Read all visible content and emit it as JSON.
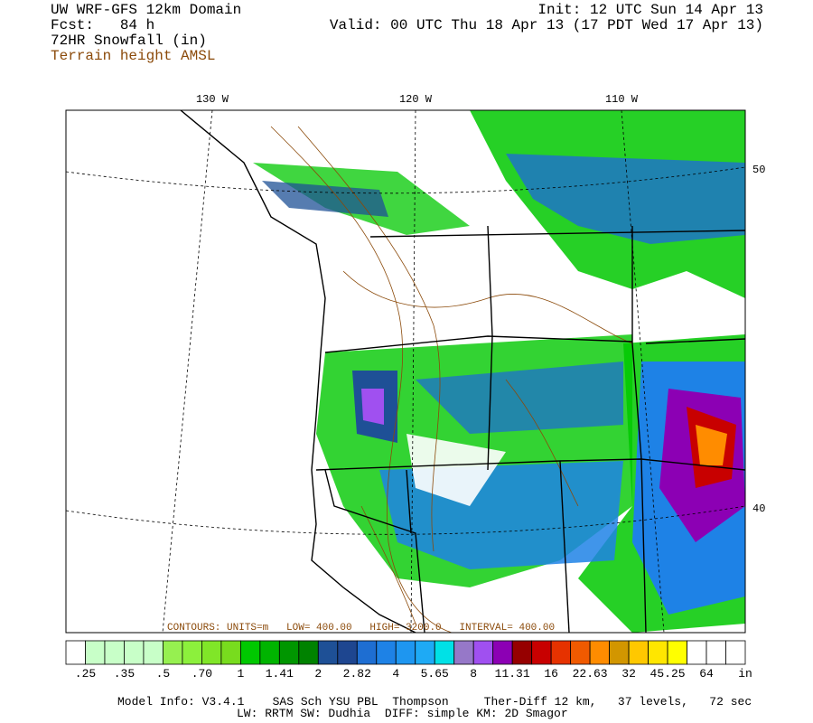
{
  "header": {
    "title": "UW WRF-GFS 12km Domain",
    "forecast": "Fcst:   84 h",
    "field": "72HR Snowfall (in)",
    "contour_field": "Terrain height AMSL",
    "init": "Init: 12 UTC Sun 14 Apr 13",
    "valid": "Valid: 00 UTC Thu 18 Apr 13 (17 PDT Wed 17 Apr 13)"
  },
  "map": {
    "lon_labels": [
      "130 W",
      "120 W",
      "110 W"
    ],
    "lat_labels": [
      "50",
      "40"
    ],
    "contour_note": "CONTOURS: UNITS=m   LOW= 400.00   HIGH= 3200.0   INTERVAL= 400.00"
  },
  "colorbar": {
    "colors": [
      "#ffffff",
      "#c8ffc8",
      "#c8ffc8",
      "#c8ffc8",
      "#c8ffc8",
      "#96f050",
      "#8cf03c",
      "#80e628",
      "#78dc1e",
      "#00c800",
      "#00b400",
      "#009600",
      "#008200",
      "#1e5096",
      "#1e4690",
      "#1e6ed2",
      "#1e82e6",
      "#1e96f0",
      "#1eaaf5",
      "#00e1e6",
      "#9678c8",
      "#a050f0",
      "#8c00b4",
      "#960000",
      "#c80000",
      "#e63200",
      "#f05a00",
      "#ff8c00",
      "#d29600",
      "#ffc800",
      "#ffe600",
      "#ffff00",
      "#ffffff",
      "#ffffff",
      "#ffffff"
    ],
    "labels": [
      ".25",
      ".35",
      ".5",
      ".70",
      "1",
      "1.41",
      "2",
      "2.82",
      "4",
      "5.65",
      "8",
      "11.31",
      "16",
      "22.63",
      "32",
      "45.25",
      "64"
    ],
    "unit": "in"
  },
  "footer": {
    "line1": "Model Info: V3.4.1    SAS Sch YSU PBL  Thompson     Ther-Diff 12 km,   37 levels,   72 sec",
    "line2": "LW: RRTM SW: Dudhia  DIFF: simple KM: 2D Smagor"
  }
}
